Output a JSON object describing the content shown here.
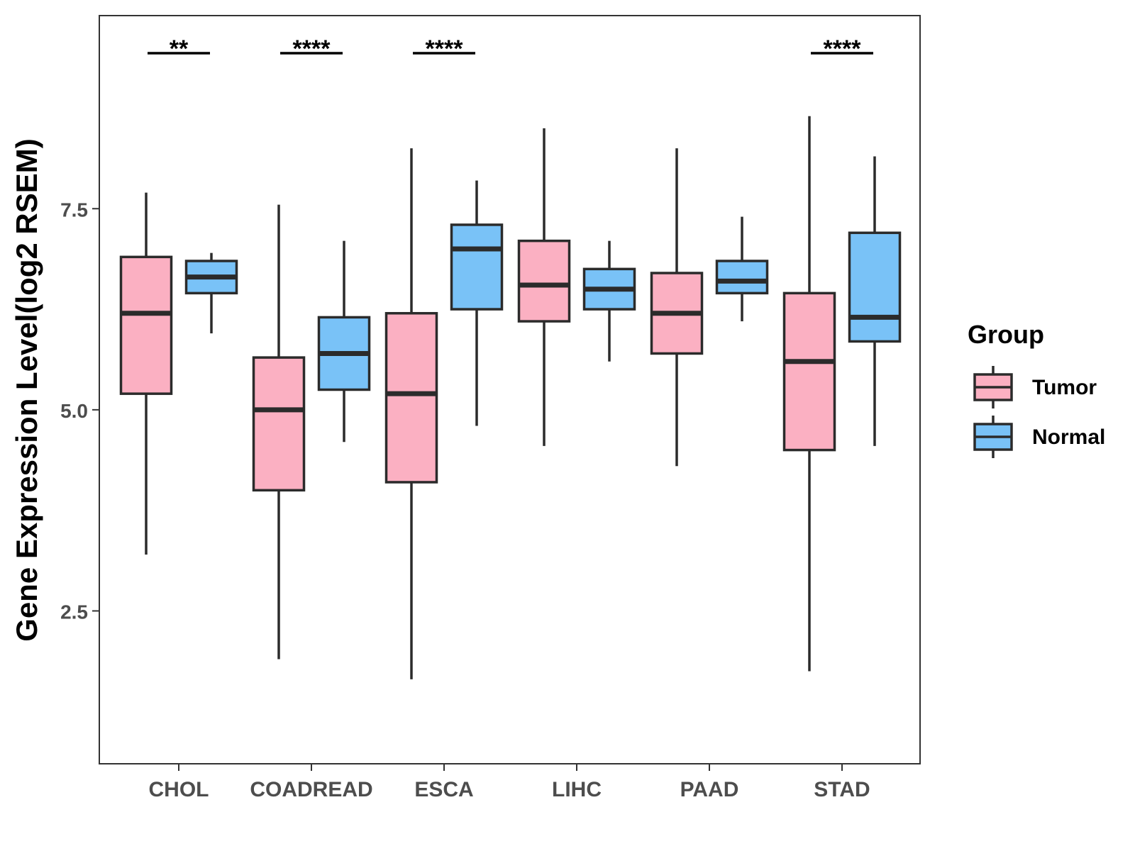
{
  "chart_data": {
    "type": "boxplot",
    "ylabel": "Gene Expression Level(log2 RSEM)",
    "xlabel": "",
    "ylim": [
      0.6,
      9.9
    ],
    "yticks": [
      2.5,
      5.0,
      7.5
    ],
    "ytick_labels": [
      "2.5",
      "5.0",
      "7.5"
    ],
    "grid": false,
    "legend": {
      "title": "Group",
      "position": "right",
      "entries": [
        {
          "name": "Tumor",
          "color": "#FBB0C2"
        },
        {
          "name": "Normal",
          "color": "#79C2F7"
        }
      ]
    },
    "categories": [
      "CHOL",
      "COADREAD",
      "ESCA",
      "LIHC",
      "PAAD",
      "STAD"
    ],
    "series": [
      {
        "name": "Tumor",
        "color": "#FBB0C2",
        "boxes": [
          {
            "whisker_low": 3.2,
            "q1": 5.2,
            "median": 6.2,
            "q3": 6.9,
            "whisker_high": 7.7
          },
          {
            "whisker_low": 1.9,
            "q1": 4.0,
            "median": 5.0,
            "q3": 5.65,
            "whisker_high": 7.55
          },
          {
            "whisker_low": 1.65,
            "q1": 4.1,
            "median": 5.2,
            "q3": 6.2,
            "whisker_high": 8.25
          },
          {
            "whisker_low": 4.55,
            "q1": 6.1,
            "median": 6.55,
            "q3": 7.1,
            "whisker_high": 8.5
          },
          {
            "whisker_low": 4.3,
            "q1": 5.7,
            "median": 6.2,
            "q3": 6.7,
            "whisker_high": 8.25
          },
          {
            "whisker_low": 1.75,
            "q1": 4.5,
            "median": 5.6,
            "q3": 6.45,
            "whisker_high": 8.65
          }
        ]
      },
      {
        "name": "Normal",
        "color": "#79C2F7",
        "boxes": [
          {
            "whisker_low": 5.95,
            "q1": 6.45,
            "median": 6.65,
            "q3": 6.85,
            "whisker_high": 6.95
          },
          {
            "whisker_low": 4.6,
            "q1": 5.25,
            "median": 5.7,
            "q3": 6.15,
            "whisker_high": 7.1
          },
          {
            "whisker_low": 4.8,
            "q1": 6.25,
            "median": 7.0,
            "q3": 7.3,
            "whisker_high": 7.85
          },
          {
            "whisker_low": 5.6,
            "q1": 6.25,
            "median": 6.5,
            "q3": 6.75,
            "whisker_high": 7.1
          },
          {
            "whisker_low": 6.1,
            "q1": 6.45,
            "median": 6.6,
            "q3": 6.85,
            "whisker_high": 7.4
          },
          {
            "whisker_low": 4.55,
            "q1": 5.85,
            "median": 6.15,
            "q3": 7.2,
            "whisker_high": 8.15
          }
        ]
      }
    ],
    "annotations": [
      {
        "category": "CHOL",
        "label": "**"
      },
      {
        "category": "COADREAD",
        "label": "****"
      },
      {
        "category": "ESCA",
        "label": "****"
      },
      {
        "category": "STAD",
        "label": "****"
      }
    ]
  }
}
